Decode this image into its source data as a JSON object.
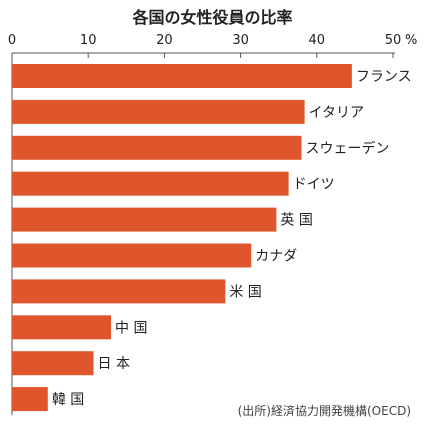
{
  "chart_data": {
    "type": "bar",
    "orientation": "horizontal",
    "title": "各国の女性役員の比率",
    "unit": "%",
    "xlim": [
      0,
      50
    ],
    "x_ticks": [
      0,
      10,
      20,
      30,
      40,
      50
    ],
    "x_tick_labels": [
      "0",
      "10",
      "20",
      "30",
      "40",
      "50"
    ],
    "categories": [
      "フランス",
      "イタリア",
      "スウェーデン",
      "ドイツ",
      "英 国",
      "カナダ",
      "米 国",
      "中 国",
      "日 本",
      "韓 国"
    ],
    "values": [
      44.6,
      38.4,
      38.0,
      36.3,
      34.7,
      31.4,
      28.0,
      13.0,
      10.7,
      4.7
    ],
    "source": "(出所)経済協力開発機構(OECD)",
    "grid": false,
    "legend": "none"
  },
  "colors": {
    "bar": "#E0562C",
    "axis": "#555555",
    "text": "#222222"
  }
}
